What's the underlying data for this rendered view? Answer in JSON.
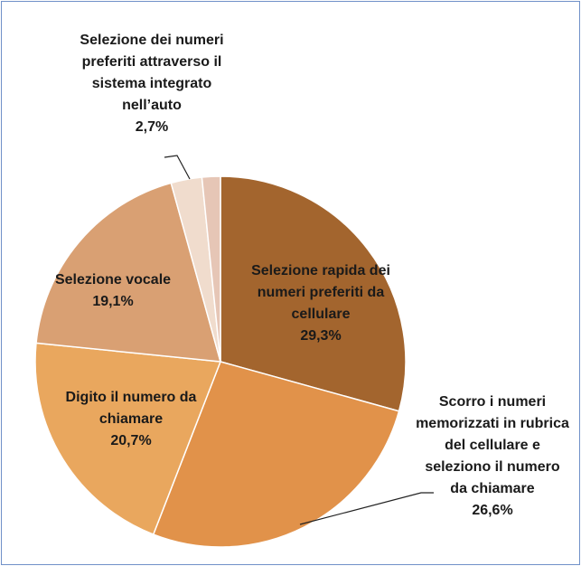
{
  "chart_data": {
    "type": "pie",
    "categories": [
      "Selezione rapida dei numeri preferiti da cellulare",
      "Scorro i numeri memorizzati in rubrica del cellulare e seleziono il numero da chiamare",
      "Digito il numero da chiamare",
      "Selezione vocale",
      "Selezione dei numeri preferiti attraverso il sistema integrato nell’auto",
      null
    ],
    "values": [
      29.3,
      26.6,
      20.7,
      19.1,
      2.7,
      1.6
    ],
    "value_labels": [
      "29,3%",
      "26,6%",
      "20,7%",
      "19,1%",
      "2,7%",
      null
    ],
    "colors": [
      "#a3652e",
      "#e1924a",
      "#e9a75e",
      "#d9a073",
      "#f0dccd",
      "#e6c6b6"
    ]
  }
}
